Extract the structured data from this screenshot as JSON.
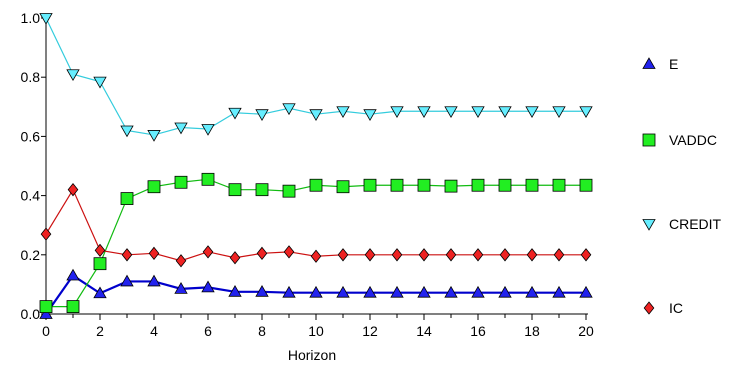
{
  "chart_data": {
    "type": "line",
    "title": "",
    "xlabel": "Horizon",
    "ylabel": "",
    "xlim": [
      0,
      20
    ],
    "ylim": [
      0,
      1.0
    ],
    "x_ticks": [
      0,
      2,
      4,
      6,
      8,
      10,
      12,
      14,
      16,
      18,
      20
    ],
    "y_ticks": [
      0.0,
      0.2,
      0.4,
      0.6,
      0.8,
      1.0
    ],
    "y_tick_labels": [
      "0.0",
      "0.2",
      "0.4",
      "0.6",
      "0.8",
      "1.0"
    ],
    "grid": false,
    "legend_position": "right",
    "x": [
      0,
      1,
      2,
      3,
      4,
      5,
      6,
      7,
      8,
      9,
      10,
      11,
      12,
      13,
      14,
      15,
      16,
      17,
      18,
      19,
      20
    ],
    "series": [
      {
        "name": "E",
        "marker": "triangle-up",
        "line_color": "#0000cc",
        "marker_fill": "#2222ee",
        "values": [
          0.0,
          0.13,
          0.07,
          0.11,
          0.11,
          0.085,
          0.09,
          0.075,
          0.075,
          0.072,
          0.072,
          0.072,
          0.072,
          0.072,
          0.072,
          0.072,
          0.072,
          0.072,
          0.072,
          0.072,
          0.072
        ]
      },
      {
        "name": "VADDC",
        "marker": "square",
        "line_color": "#11bb11",
        "marker_fill": "#22ee22",
        "values": [
          0.025,
          0.025,
          0.17,
          0.39,
          0.43,
          0.445,
          0.455,
          0.42,
          0.42,
          0.415,
          0.435,
          0.43,
          0.435,
          0.435,
          0.435,
          0.432,
          0.435,
          0.435,
          0.435,
          0.435,
          0.435
        ]
      },
      {
        "name": "CREDIT",
        "marker": "triangle-down",
        "line_color": "#33ccdd",
        "marker_fill": "#66eeff",
        "values": [
          1.0,
          0.81,
          0.785,
          0.62,
          0.605,
          0.63,
          0.625,
          0.68,
          0.675,
          0.695,
          0.675,
          0.685,
          0.675,
          0.685,
          0.685,
          0.685,
          0.685,
          0.685,
          0.685,
          0.685,
          0.685
        ]
      },
      {
        "name": "IC",
        "marker": "diamond",
        "line_color": "#cc1111",
        "marker_fill": "#ee2222",
        "values": [
          0.27,
          0.42,
          0.215,
          0.2,
          0.205,
          0.18,
          0.21,
          0.19,
          0.205,
          0.21,
          0.195,
          0.2,
          0.2,
          0.2,
          0.2,
          0.2,
          0.2,
          0.2,
          0.2,
          0.2,
          0.2
        ]
      }
    ]
  }
}
